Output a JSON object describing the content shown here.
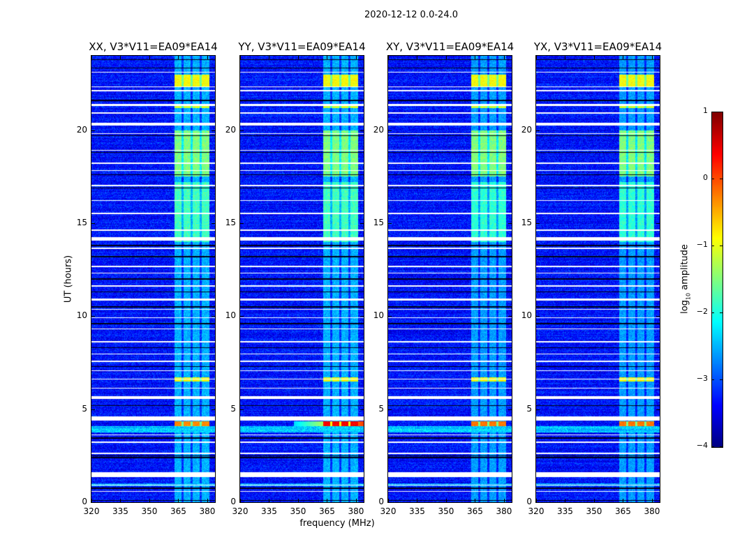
{
  "chart_data": {
    "type": "heatmap",
    "title": "2020-12-12 0.0-24.0",
    "xlabel": "frequency (MHz)",
    "ylabel": "UT (hours)",
    "xlim": [
      320,
      384
    ],
    "ylim": [
      0,
      24
    ],
    "xticks": [
      320,
      335,
      350,
      365,
      380
    ],
    "yticks": [
      0,
      5,
      10,
      15,
      20
    ],
    "panels": [
      {
        "title": "XX, V3*V11=EA09*EA14",
        "rfi_peak": -0.3
      },
      {
        "title": "YY, V3*V11=EA09*EA14",
        "rfi_peak": 0.4
      },
      {
        "title": "XY, V3*V11=EA09*EA14",
        "rfi_peak": -0.2
      },
      {
        "title": "YX, V3*V11=EA09*EA14",
        "rfi_peak": -0.2
      }
    ],
    "colorbar": {
      "label": "log10 amplitude",
      "label_main": "log",
      "label_sub": "10",
      "label_end": " amplitude",
      "range": [
        -4,
        1
      ],
      "ticks": [
        1,
        0,
        -1,
        -2,
        -3,
        -4
      ],
      "colormap": "jet"
    },
    "background_level": -3.3,
    "bright_band_mhz": [
      363,
      381
    ],
    "band_levels": [
      {
        "ut": [
          22.3,
          23.0
        ],
        "level": -0.9
      },
      {
        "ut": [
          21.2,
          21.4
        ],
        "level": -1.1
      },
      {
        "ut": [
          17.5,
          20.0
        ],
        "level": -1.5
      },
      {
        "ut": [
          14.0,
          17.2
        ],
        "level": -1.8
      },
      {
        "ut": [
          6.5,
          6.7
        ],
        "level": -0.9
      },
      {
        "ut": [
          4.1,
          4.35
        ],
        "level": "rfi"
      }
    ],
    "flagged_ut": [
      [
        1.35,
        1.6
      ],
      [
        4.4,
        4.6
      ],
      [
        5.55,
        5.7
      ],
      [
        14.05,
        14.25
      ],
      [
        20.25,
        20.4
      ],
      [
        0.55,
        0.6
      ],
      [
        0.9,
        0.95
      ],
      [
        2.6,
        2.65
      ],
      [
        3.2,
        3.25
      ],
      [
        3.6,
        3.65
      ],
      [
        6.1,
        6.15
      ],
      [
        6.6,
        6.65
      ],
      [
        7.05,
        7.1
      ],
      [
        7.55,
        7.6
      ],
      [
        7.95,
        8.0
      ],
      [
        8.6,
        8.65
      ],
      [
        9.3,
        9.35
      ],
      [
        9.9,
        9.95
      ],
      [
        10.35,
        10.4
      ],
      [
        10.85,
        10.95
      ],
      [
        11.6,
        11.65
      ],
      [
        12.3,
        12.35
      ],
      [
        12.65,
        12.7
      ],
      [
        13.6,
        13.7
      ],
      [
        14.6,
        14.65
      ],
      [
        15.5,
        15.55
      ],
      [
        16.2,
        16.25
      ],
      [
        17.0,
        17.05
      ],
      [
        17.8,
        17.85
      ],
      [
        18.2,
        18.25
      ],
      [
        18.9,
        18.95
      ],
      [
        19.8,
        19.85
      ],
      [
        20.9,
        20.95
      ],
      [
        21.3,
        21.4
      ],
      [
        22.1,
        22.15
      ],
      [
        22.3,
        22.35
      ],
      [
        23.1,
        23.15
      ]
    ],
    "dark_ut": [
      0.1,
      0.75,
      2.4,
      2.5,
      3.45,
      4.45,
      5.2,
      7.3,
      8.3,
      9.6,
      10.5,
      11.3,
      12.0,
      13.2,
      13.8,
      16.9,
      17.6,
      18.8,
      19.7,
      21.6,
      23.35,
      23.8
    ]
  }
}
